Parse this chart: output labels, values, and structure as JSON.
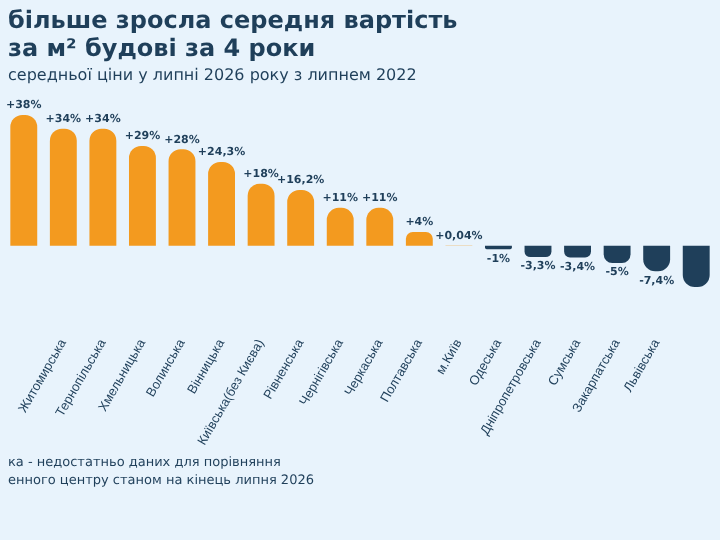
{
  "chart_data": {
    "type": "bar",
    "title": "більше зросла середня вартість за м² будові за 4 роки",
    "subtitle": "середньої ціни у липні 2026 року з липнем 2022",
    "categories": [
      null,
      "Житомирська",
      "Тернопільська",
      "Хмельницька",
      "Волинська",
      "Вінницька",
      "Київська(без Києва)",
      "Рівненська",
      "Чернігівська",
      "Черкаська",
      "Полтавська",
      "м.Київ",
      "Одеська",
      "Дніпропетровська",
      "Сумська",
      "Закарпатська",
      "Львівська",
      null
    ],
    "values": [
      38,
      34,
      34,
      29,
      28,
      24.3,
      18,
      16.2,
      11,
      11,
      4,
      0.04,
      -1,
      -3.3,
      -3.4,
      -5,
      -7.4,
      -12
    ],
    "value_labels": [
      "+38%",
      "+34%",
      "+34%",
      "+29%",
      "+28%",
      "+24,3%",
      "+18%",
      "+16,2%",
      "+11%",
      "+11%",
      "+4%",
      "+0,04%",
      "-1%",
      "-3,3%",
      "-3,4%",
      "-5%",
      "-7,4%",
      null
    ],
    "colors": [
      "#f39a1f",
      "#f39a1f",
      "#f39a1f",
      "#f39a1f",
      "#f39a1f",
      "#f39a1f",
      "#f39a1f",
      "#f39a1f",
      "#f39a1f",
      "#f39a1f",
      "#f39a1f",
      "#f39a1f",
      "#1f3f5a",
      "#1f3f5a",
      "#1f3f5a",
      "#1f3f5a",
      "#1f3f5a",
      "#1f3f5a"
    ],
    "annotations": [
      "ка - недостатньо даних для порівняння",
      "енного центру станом на кінець липня 2026"
    ]
  }
}
